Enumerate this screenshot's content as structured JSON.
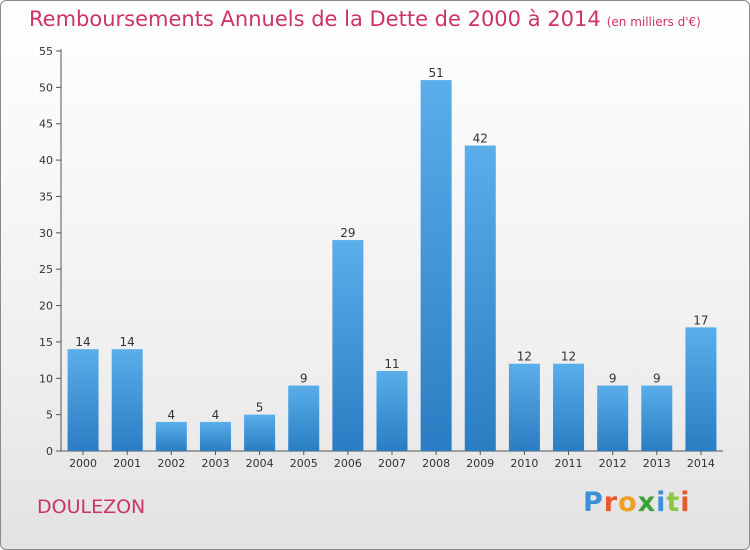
{
  "title": "Remboursements Annuels de la Dette de 2000 à 2014",
  "unit": "(en milliers d'€)",
  "city": "DOULEZON",
  "logo": "Proxiti",
  "chart_data": {
    "type": "bar",
    "title": "Remboursements Annuels de la Dette de 2000 à 2014",
    "subtitle": "(en milliers d'€)",
    "xlabel": "",
    "ylabel": "",
    "categories": [
      "2000",
      "2001",
      "2002",
      "2003",
      "2004",
      "2005",
      "2006",
      "2007",
      "2008",
      "2009",
      "2010",
      "2011",
      "2012",
      "2013",
      "2014"
    ],
    "values": [
      14,
      14,
      4,
      4,
      5,
      9,
      29,
      11,
      51,
      42,
      12,
      12,
      9,
      9,
      17
    ],
    "ylim": [
      0,
      55
    ],
    "yticks": [
      0,
      5,
      10,
      15,
      20,
      25,
      30,
      35,
      40,
      45,
      50,
      55
    ],
    "grid": false,
    "legend": "none",
    "bar_color": "#3f93d6"
  }
}
